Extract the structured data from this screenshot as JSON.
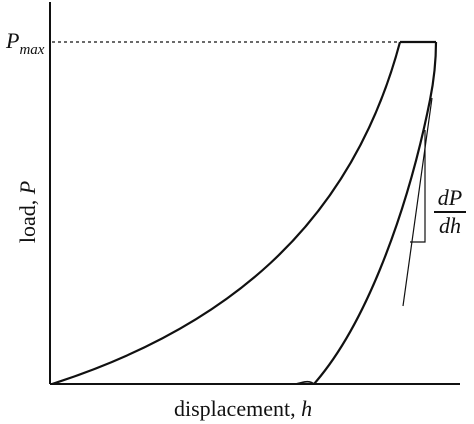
{
  "labels": {
    "pmax_main": "P",
    "pmax_sub": "max",
    "y_axis_text": "load, ",
    "y_axis_var": "P",
    "x_axis_text": "displacement, ",
    "x_axis_var": "h",
    "slope_num": "dP",
    "slope_den": "dh"
  },
  "colors": {
    "ink": "#111111",
    "background": "#ffffff"
  }
}
